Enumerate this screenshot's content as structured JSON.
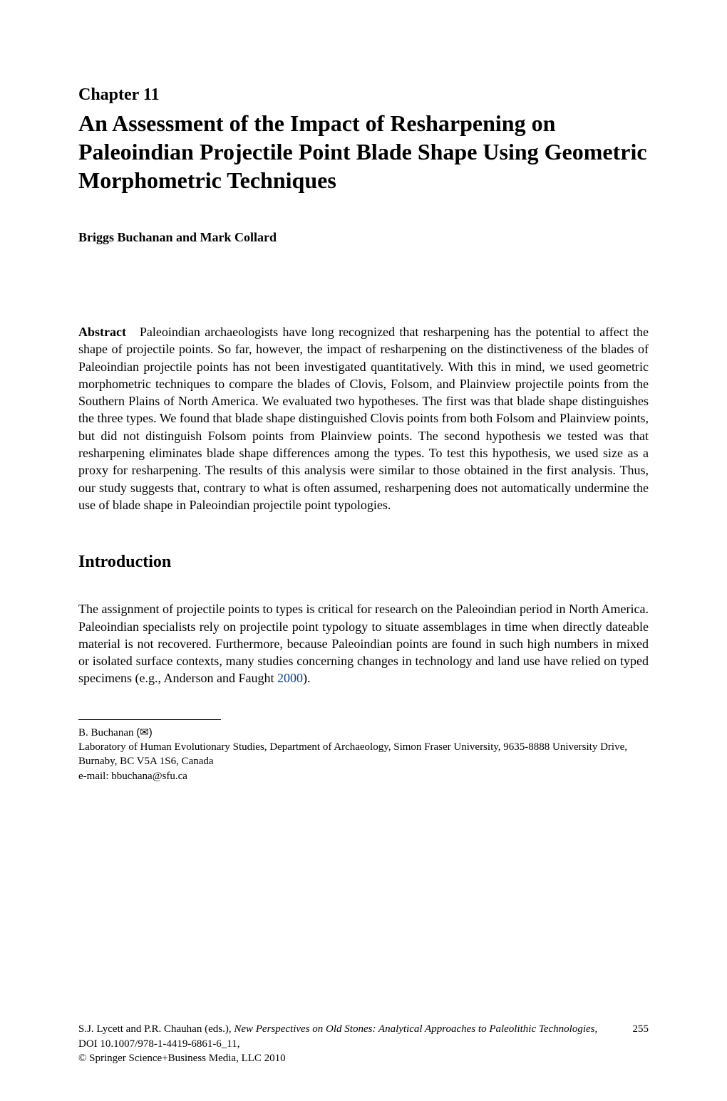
{
  "chapter": {
    "label": "Chapter 11",
    "title": "An Assessment of the Impact of Resharpening on Paleoindian Projectile Point Blade Shape Using Geometric Morphometric Techniques"
  },
  "authors": "Briggs Buchanan and Mark Collard",
  "abstract": {
    "label": "Abstract",
    "text": "Paleoindian archaeologists have long recognized that resharpening has the potential to affect the shape of projectile points. So far, however, the impact of resharpening on the distinctiveness of the blades of Paleoindian projectile points has not been investigated quantitatively. With this in mind, we used geometric morphometric techniques to compare the blades of Clovis, Folsom, and Plainview projectile points from the Southern Plains of North America. We evaluated two hypotheses. The first was that blade shape distinguishes the three types. We found that blade shape distinguished Clovis points from both Folsom and Plainview points, but did not distinguish Folsom points from Plainview points. The second hypothesis we tested was that resharpening eliminates blade shape differences among the types. To test this hypothesis, we used size as a proxy for resharpening. The results of this analysis were similar to those obtained in the first analysis. Thus, our study suggests that, contrary to what is often assumed, resharpening does not automatically undermine the use of blade shape in Paleoindian projectile point typologies."
  },
  "introduction": {
    "heading": "Introduction",
    "paragraph_part1": "The assignment of projectile points to types is critical for research on the Paleoindian period in North America. Paleoindian specialists rely on projectile point typology to situate assemblages in time when directly dateable material is not recovered. Furthermore, because Paleoindian points are found in such high numbers in mixed or isolated surface contexts, many studies concerning changes in technology and land use have relied on typed specimens (e.g., Anderson and Faught ",
    "citation_year": "2000",
    "paragraph_part2": ")."
  },
  "footnote": {
    "author_name": "B. Buchanan",
    "affiliation": "Laboratory of Human Evolutionary Studies, Department of Archaeology, Simon Fraser University, 9635-8888 University Drive, Burnaby, BC V5A 1S6, Canada",
    "email_label": "e-mail: ",
    "email": "bbuchana@sfu.ca"
  },
  "footer": {
    "editors": "S.J. Lycett and P.R. Chauhan (eds.), ",
    "book_title": "New Perspectives on Old Stones: Analytical Approaches to Paleolithic Technologies",
    "doi": ", DOI 10.1007/978-1-4419-6861-6_11,",
    "copyright": "© Springer Science+Business Media, LLC 2010",
    "page_number": "255"
  }
}
